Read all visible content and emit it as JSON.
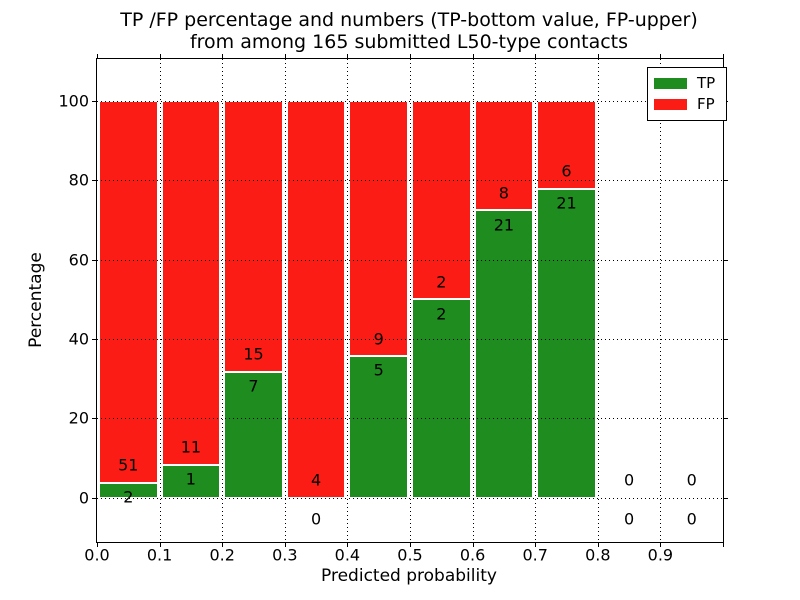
{
  "chart_data": {
    "type": "bar",
    "stacked": true,
    "title_line1": "TP /FP percentage and numbers (TP-bottom value, FP-upper)",
    "title_line2": "from among 165 submitted L50-type contacts",
    "xlabel": "Predicted probability",
    "ylabel": "Percentage",
    "total_contacts": 165,
    "legend": [
      {
        "label": "TP",
        "color": "#1e8c1e"
      },
      {
        "label": "FP",
        "color": "#fb1d15"
      }
    ],
    "colors": {
      "tp": "#1e8c1e",
      "fp": "#fb1d15",
      "bar_edge": "#ffffff",
      "grid": "#000000"
    },
    "xlim": [
      0,
      1.0
    ],
    "ylim": [
      -11.1,
      110.5
    ],
    "x_ticks": {
      "values": [
        0,
        0.1,
        0.2,
        0.3,
        0.4,
        0.5,
        0.6,
        0.7,
        0.8,
        0.9,
        1.0
      ],
      "labels": [
        "0.0",
        "0.1",
        "0.2",
        "0.3",
        "0.4",
        "0.5",
        "0.6",
        "0.7",
        "0.8",
        "0.9",
        ""
      ]
    },
    "y_ticks": {
      "values": [
        0,
        20,
        40,
        60,
        80,
        100
      ],
      "labels": [
        "0",
        "20",
        "40",
        "60",
        "80",
        "100"
      ]
    },
    "grid": {
      "style": "dotted",
      "x_values": [
        0.1,
        0.2,
        0.3,
        0.4,
        0.5,
        0.6,
        0.7,
        0.8,
        0.9
      ],
      "y_values": [
        0,
        20,
        40,
        60,
        80,
        100
      ]
    },
    "bins": [
      {
        "range": [
          0.0,
          0.1
        ],
        "tp": 2,
        "fp": 51
      },
      {
        "range": [
          0.1,
          0.2
        ],
        "tp": 1,
        "fp": 11
      },
      {
        "range": [
          0.2,
          0.3
        ],
        "tp": 7,
        "fp": 15
      },
      {
        "range": [
          0.3,
          0.4
        ],
        "tp": 0,
        "fp": 4
      },
      {
        "range": [
          0.4,
          0.5
        ],
        "tp": 5,
        "fp": 9
      },
      {
        "range": [
          0.5,
          0.6
        ],
        "tp": 2,
        "fp": 2
      },
      {
        "range": [
          0.6,
          0.7
        ],
        "tp": 21,
        "fp": 8
      },
      {
        "range": [
          0.7,
          0.8
        ],
        "tp": 21,
        "fp": 6
      },
      {
        "range": [
          0.8,
          0.9
        ],
        "tp": 0,
        "fp": 0
      },
      {
        "range": [
          0.9,
          1.0
        ],
        "tp": 0,
        "fp": 0
      }
    ]
  }
}
